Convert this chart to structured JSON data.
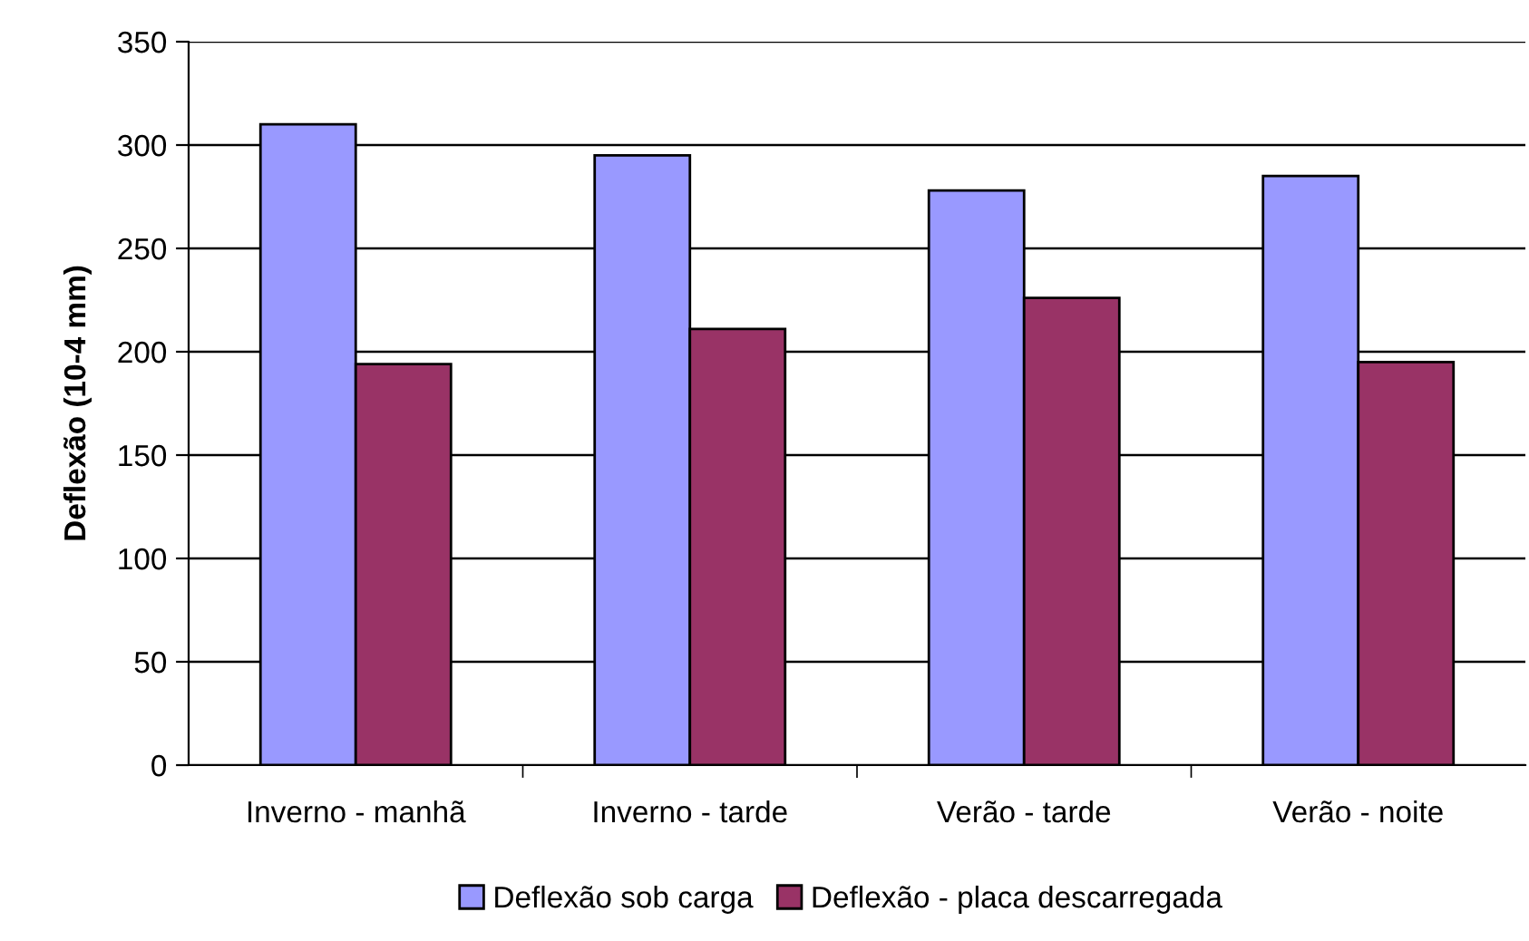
{
  "chart_data": {
    "type": "bar",
    "ylabel": "Deflexão (10-4 mm)",
    "categories": [
      "Inverno - manhã",
      "Inverno - tarde",
      "Verão - tarde",
      "Verão - noite"
    ],
    "series": [
      {
        "name": "Deflexão sob carga",
        "color": "#9999ff",
        "values": [
          310,
          295,
          278,
          285
        ]
      },
      {
        "name": "Deflexão - placa descarregada",
        "color": "#993366",
        "values": [
          194,
          211,
          226,
          195
        ]
      }
    ],
    "ylim": [
      0,
      350
    ],
    "yticks": [
      0,
      50,
      100,
      150,
      200,
      250,
      300,
      350
    ],
    "grid": "y",
    "legend": "bottom"
  }
}
